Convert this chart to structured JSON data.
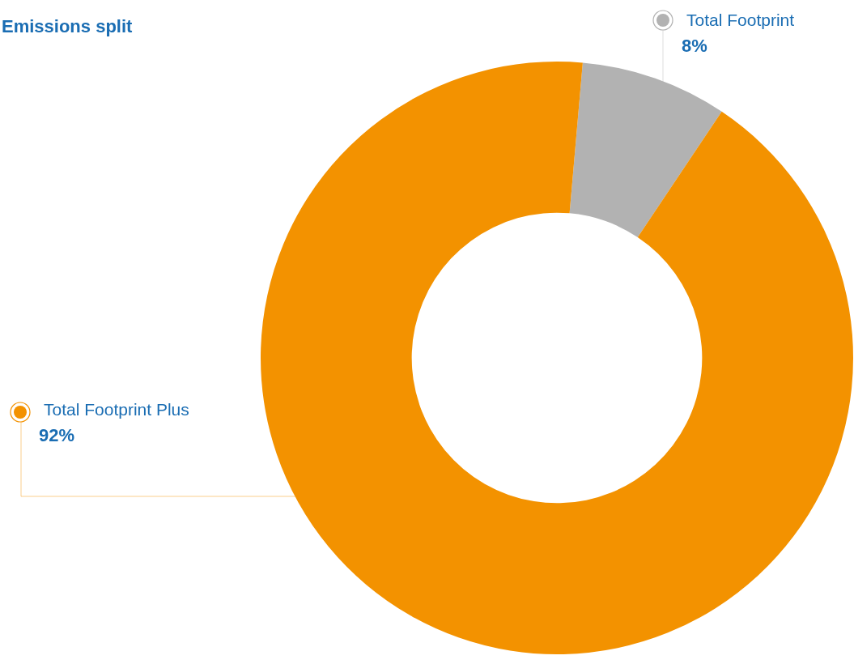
{
  "chart_data": {
    "type": "donut",
    "title": "Emissions split",
    "categories": [
      "Total Footprint",
      "Total Footprint Plus"
    ],
    "values": [
      8,
      92
    ],
    "colors": [
      "#b2b2b2",
      "#f39200"
    ],
    "value_labels": [
      "8%",
      "92%"
    ],
    "legend": "left"
  }
}
